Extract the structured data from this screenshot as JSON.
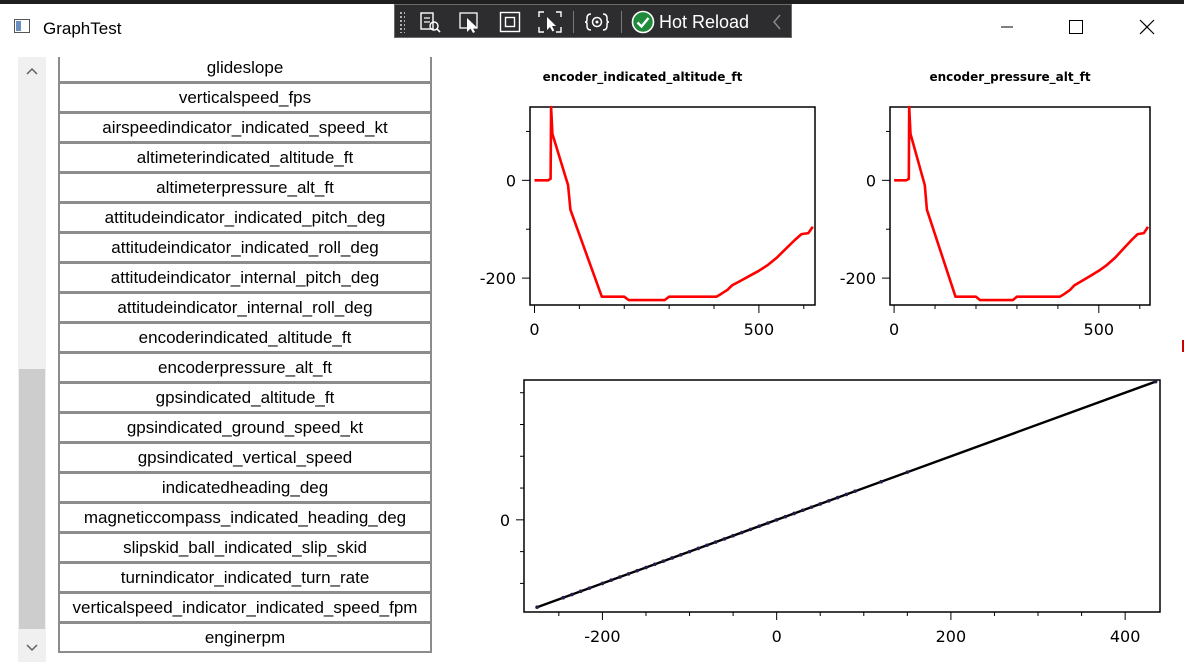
{
  "window": {
    "title": "GraphTest",
    "icon": "window-app-icon",
    "controls": [
      "minimize-icon",
      "maximize-icon",
      "close-icon"
    ]
  },
  "hot_reload_toolbar": {
    "tools": [
      "visual-tree-icon",
      "select-element-icon",
      "display-layout-adorners-icon",
      "track-focused-element-icon",
      "binding-failures-icon"
    ],
    "hot_reload_label": "Hot Reload",
    "status_icon": "check-circle-icon",
    "collapse_icon": "chevron-left-icon"
  },
  "signal_list": {
    "items": [
      "glideslope",
      "verticalspeed_fps",
      "airspeedindicator_indicated_speed_kt",
      "altimeterindicated_altitude_ft",
      "altimeterpressure_alt_ft",
      "attitudeindicator_indicated_pitch_deg",
      "attitudeindicator_indicated_roll_deg",
      "attitudeindicator_internal_pitch_deg",
      "attitudeindicator_internal_roll_deg",
      "encoderindicated_altitude_ft",
      "encoderpressure_alt_ft",
      "gpsindicated_altitude_ft",
      "gpsindicated_ground_speed_kt",
      "gpsindicated_vertical_speed",
      "indicatedheading_deg",
      "magneticcompass_indicated_heading_deg",
      "slipskid_ball_indicated_slip_skid",
      "turnindicator_indicated_turn_rate",
      "verticalspeed_indicator_indicated_speed_fpm",
      "enginerpm"
    ],
    "scroll_up_icon": "chevron-up-icon",
    "scroll_down_icon": "chevron-down-icon"
  },
  "chart_data": [
    {
      "type": "line",
      "title": "encoder_indicated_altitude_ft",
      "color": "#ff0000",
      "xticks": [
        "0",
        "500"
      ],
      "yticks": [
        "0",
        "-200"
      ],
      "xlim": [
        -10,
        625
      ],
      "ylim": [
        -255,
        150
      ],
      "series": [
        {
          "x": [
            0,
            30,
            36,
            37,
            40,
            75,
            80,
            150,
            155,
            200,
            210,
            290,
            300,
            405,
            415,
            430,
            440,
            460,
            480,
            500,
            520,
            540,
            560,
            580,
            595,
            610,
            620
          ],
          "y": [
            0,
            0,
            3,
            150,
            95,
            -10,
            -60,
            -238,
            -238,
            -238,
            -245,
            -245,
            -238,
            -238,
            -233,
            -224,
            -215,
            -205,
            -195,
            -185,
            -173,
            -158,
            -140,
            -122,
            -110,
            -108,
            -95
          ]
        }
      ]
    },
    {
      "type": "line",
      "title": "encoder_pressure_alt_ft",
      "color": "#ff0000",
      "xticks": [
        "0",
        "500"
      ],
      "yticks": [
        "0",
        "-200"
      ],
      "xlim": [
        -10,
        625
      ],
      "ylim": [
        -255,
        150
      ],
      "series": [
        {
          "x": [
            0,
            30,
            36,
            37,
            40,
            75,
            80,
            150,
            155,
            200,
            210,
            290,
            300,
            405,
            415,
            430,
            440,
            460,
            480,
            500,
            520,
            540,
            560,
            580,
            595,
            610,
            620
          ],
          "y": [
            0,
            0,
            3,
            150,
            95,
            -10,
            -60,
            -238,
            -238,
            -238,
            -245,
            -245,
            -238,
            -238,
            -233,
            -224,
            -215,
            -205,
            -195,
            -185,
            -173,
            -158,
            -140,
            -122,
            -110,
            -108,
            -95
          ]
        }
      ]
    },
    {
      "type": "scatter",
      "title": "",
      "color": "#000000",
      "xticks": [
        "-200",
        "0",
        "200",
        "400"
      ],
      "yticks": [
        "0"
      ],
      "xlim": [
        -290,
        440
      ],
      "ylim": [
        -290,
        440
      ],
      "series": [
        {
          "x": [
            -275,
            -245,
            -235,
            -225,
            -215,
            -200,
            -190,
            -180,
            -170,
            -160,
            -150,
            -140,
            -130,
            -120,
            -110,
            -100,
            -90,
            -80,
            -70,
            -60,
            -50,
            -40,
            -30,
            -20,
            -10,
            0,
            10,
            20,
            30,
            40,
            50,
            60,
            70,
            80,
            90,
            120,
            150,
            435
          ],
          "y": [
            -275,
            -245,
            -235,
            -225,
            -215,
            -200,
            -190,
            -180,
            -170,
            -160,
            -150,
            -140,
            -130,
            -120,
            -110,
            -100,
            -90,
            -80,
            -70,
            -60,
            -50,
            -40,
            -30,
            -20,
            -10,
            0,
            10,
            20,
            30,
            40,
            50,
            60,
            70,
            80,
            90,
            120,
            150,
            435
          ]
        }
      ]
    }
  ]
}
